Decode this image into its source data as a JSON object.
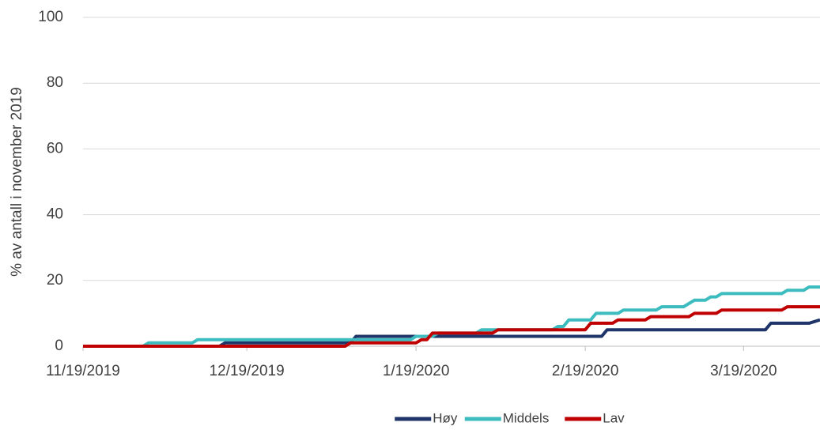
{
  "chart_data": {
    "type": "line",
    "ylabel": "% av antall i november 2019",
    "xlim": [
      "11/19/2019",
      "4/2/2020"
    ],
    "xticks": [
      "11/19/2019",
      "12/19/2019",
      "1/19/2020",
      "2/19/2020",
      "3/19/2020"
    ],
    "ylim": [
      0,
      100
    ],
    "yticks": [
      0,
      20,
      40,
      60,
      80,
      100
    ],
    "grid": true,
    "legend": "bottom",
    "series": [
      {
        "name": "Høy",
        "color": "#1f3468",
        "x": [
          "11/19/2019",
          "12/14/2019",
          "12/15/2019",
          "1/7/2020",
          "1/8/2020",
          "2/22/2020",
          "2/23/2020",
          "3/23/2020",
          "3/24/2020",
          "3/31/2020",
          "4/2/2020"
        ],
        "values": [
          0,
          0,
          1,
          1,
          3,
          3,
          5,
          5,
          7,
          7,
          8
        ]
      },
      {
        "name": "Middels",
        "color": "#3dbcbf",
        "x": [
          "11/19/2019",
          "11/30/2019",
          "12/1/2019",
          "12/9/2019",
          "12/10/2019",
          "1/18/2020",
          "1/19/2020",
          "1/22/2020",
          "1/23/2020",
          "1/30/2020",
          "1/31/2020",
          "2/13/2020",
          "2/14/2020",
          "2/15/2020",
          "2/16/2020",
          "2/20/2020",
          "2/21/2020",
          "2/25/2020",
          "2/26/2020",
          "3/3/2020",
          "3/4/2020",
          "3/8/2020",
          "3/10/2020",
          "3/12/2020",
          "3/13/2020",
          "3/14/2020",
          "3/15/2020",
          "3/26/2020",
          "3/27/2020",
          "3/30/2020",
          "3/31/2020",
          "4/2/2020"
        ],
        "values": [
          0,
          0,
          1,
          1,
          2,
          2,
          3,
          3,
          4,
          4,
          5,
          5,
          6,
          6,
          8,
          8,
          10,
          10,
          11,
          11,
          12,
          12,
          14,
          14,
          15,
          15,
          16,
          16,
          17,
          17,
          18,
          18
        ]
      },
      {
        "name": "Lav",
        "color": "#c00000",
        "x": [
          "11/19/2019",
          "1/6/2020",
          "1/7/2020",
          "1/19/2020",
          "1/20/2020",
          "1/21/2020",
          "1/22/2020",
          "2/2/2020",
          "2/3/2020",
          "2/19/2020",
          "2/20/2020",
          "2/24/2020",
          "2/25/2020",
          "3/1/2020",
          "3/2/2020",
          "3/9/2020",
          "3/10/2020",
          "3/14/2020",
          "3/15/2020",
          "3/26/2020",
          "3/27/2020",
          "4/2/2020"
        ],
        "values": [
          0,
          0,
          1,
          1,
          2,
          2,
          4,
          4,
          5,
          5,
          7,
          7,
          8,
          8,
          9,
          9,
          10,
          10,
          11,
          11,
          12,
          12
        ]
      }
    ]
  }
}
